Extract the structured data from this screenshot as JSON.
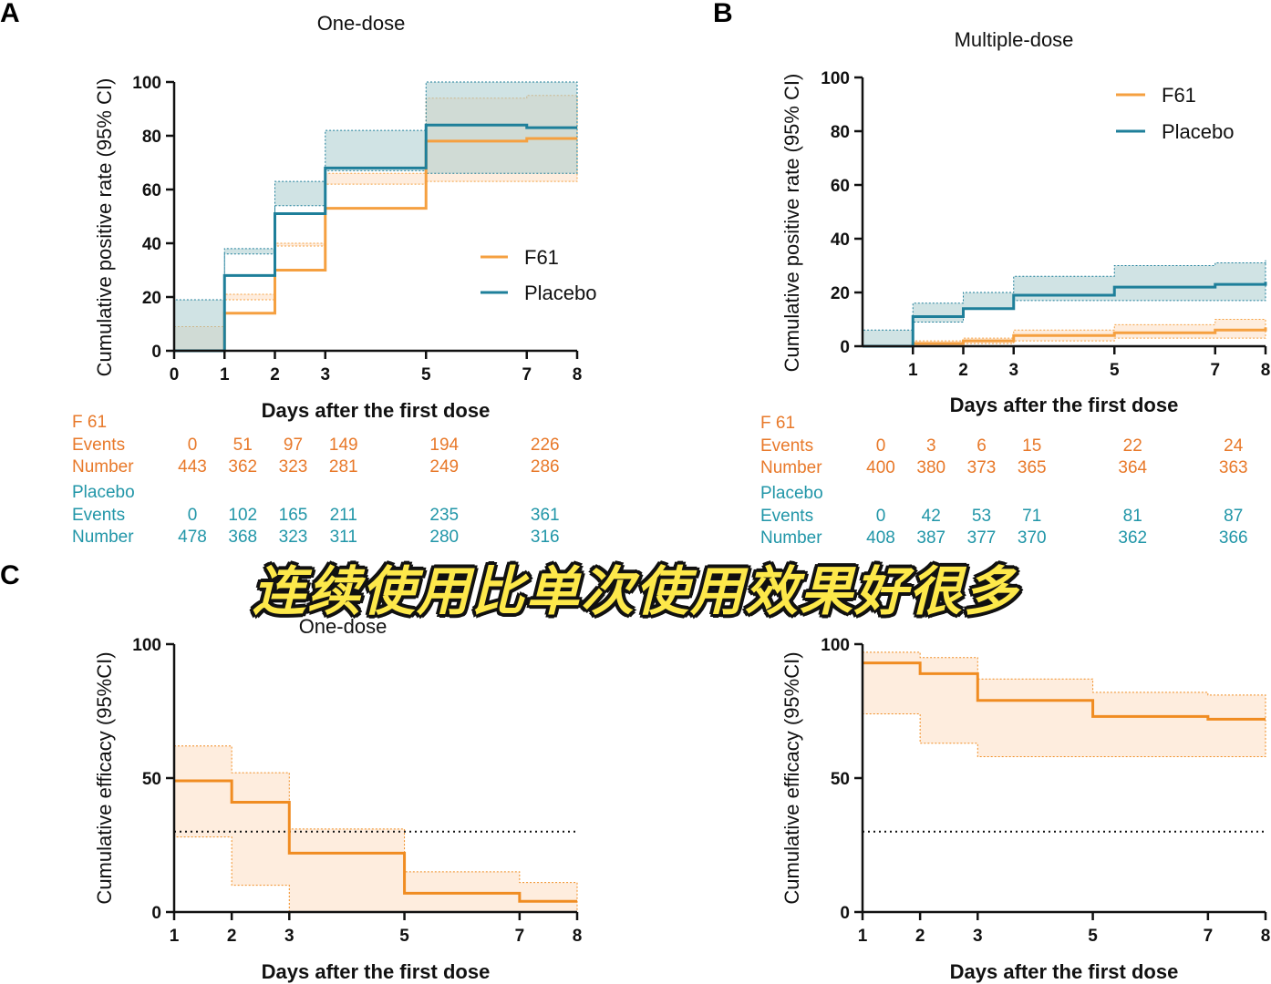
{
  "colors": {
    "f61": "#f5a040",
    "f61_fill": "#fde3cc",
    "f61_dark": "#f08c21",
    "placebo": "#1e7f9a",
    "placebo_fill": "#a9ccce",
    "risk_orange": "#e8792a",
    "risk_teal": "#2196a8",
    "axis": "#111111"
  },
  "caption": "连续使用比单次使用效果好很多",
  "chart_data": [
    {
      "id": "A",
      "panel_letter": "A",
      "type": "line",
      "step": true,
      "title": "One-dose",
      "xlabel": "Days after the first dose",
      "ylabel": "Cumulative positive rate (95% CI)",
      "xlim": [
        0,
        8
      ],
      "ylim": [
        0,
        100
      ],
      "xticks": [
        0,
        1,
        2,
        3,
        5,
        7,
        8
      ],
      "yticks": [
        0,
        20,
        40,
        60,
        80,
        100
      ],
      "legend_position": "middle-right",
      "series": [
        {
          "name": "F61",
          "color_key": "f61",
          "x": [
            0,
            1,
            2,
            3,
            5,
            7,
            8
          ],
          "y": [
            0,
            14,
            30,
            53,
            78,
            79,
            79
          ],
          "lower": [
            0,
            9,
            21,
            40,
            62,
            63,
            63
          ],
          "upper": [
            0,
            19,
            39,
            66,
            94,
            95,
            95
          ]
        },
        {
          "name": "Placebo",
          "color_key": "placebo",
          "x": [
            0,
            1,
            2,
            3,
            5,
            7,
            8
          ],
          "y": [
            0,
            28,
            51,
            68,
            84,
            83,
            83
          ],
          "lower": [
            0,
            19,
            38,
            54,
            67,
            66,
            66
          ],
          "upper": [
            0,
            36,
            63,
            82,
            100,
            100,
            100
          ]
        }
      ],
      "risk_table": {
        "columns": [
          0,
          1,
          2,
          3,
          5,
          7
        ],
        "groups": [
          {
            "name": "F 61",
            "color_key": "risk_orange",
            "rows": [
              {
                "label": "Events",
                "values": [
                  "0",
                  "51",
                  "97",
                  "149",
                  "194",
                  "226"
                ]
              },
              {
                "label": "Number",
                "values": [
                  "443",
                  "362",
                  "323",
                  "281",
                  "249",
                  "286"
                ]
              }
            ]
          },
          {
            "name": "Placebo",
            "color_key": "risk_teal",
            "rows": [
              {
                "label": "Events",
                "values": [
                  "0",
                  "102",
                  "165",
                  "211",
                  "235",
                  "361"
                ]
              },
              {
                "label": "Number",
                "values": [
                  "478",
                  "368",
                  "323",
                  "311",
                  "280",
                  "316"
                ]
              }
            ]
          }
        ]
      }
    },
    {
      "id": "B",
      "panel_letter": "B",
      "type": "line",
      "step": true,
      "title": "Multiple-dose",
      "xlabel": "Days after the first dose",
      "ylabel": "Cumulative positive rate (95% CI)",
      "xlim": [
        0,
        8
      ],
      "ylim": [
        0,
        100
      ],
      "xticks": [
        1,
        2,
        3,
        5,
        7,
        8
      ],
      "yticks": [
        0,
        20,
        40,
        60,
        80,
        100
      ],
      "legend_position": "top-right",
      "series": [
        {
          "name": "F61",
          "color_key": "f61",
          "x": [
            0,
            1,
            2,
            3,
            5,
            7,
            8
          ],
          "y": [
            0,
            1,
            2,
            4,
            5,
            6,
            7
          ],
          "lower": [
            0,
            0,
            0,
            1,
            2,
            3,
            3
          ],
          "upper": [
            0,
            2,
            3,
            6,
            8,
            10,
            10
          ]
        },
        {
          "name": "Placebo",
          "color_key": "placebo",
          "x": [
            0,
            1,
            2,
            3,
            5,
            7,
            8
          ],
          "y": [
            0,
            11,
            14,
            19,
            22,
            23,
            24
          ],
          "lower": [
            0,
            6,
            9,
            14,
            17,
            17,
            17
          ],
          "upper": [
            0,
            16,
            20,
            26,
            30,
            31,
            32
          ]
        }
      ],
      "risk_table": {
        "columns": [
          0,
          1,
          2,
          3,
          5,
          7
        ],
        "groups": [
          {
            "name": "F 61",
            "color_key": "risk_orange",
            "rows": [
              {
                "label": "Events",
                "values": [
                  "0",
                  "3",
                  "6",
                  "15",
                  "22",
                  "24"
                ]
              },
              {
                "label": "Number",
                "values": [
                  "400",
                  "380",
                  "373",
                  "365",
                  "364",
                  "363"
                ]
              }
            ]
          },
          {
            "name": "Placebo",
            "color_key": "risk_teal",
            "rows": [
              {
                "label": "Events",
                "values": [
                  "0",
                  "42",
                  "53",
                  "71",
                  "81",
                  "87"
                ]
              },
              {
                "label": "Number",
                "values": [
                  "408",
                  "387",
                  "377",
                  "370",
                  "362",
                  "366"
                ]
              }
            ]
          }
        ]
      }
    },
    {
      "id": "C1",
      "panel_letter": "C",
      "type": "line",
      "step": true,
      "title": "One-dose",
      "xlabel": "Days after the first dose",
      "ylabel": "Cumulative efficacy (95%CI)",
      "xlim": [
        1,
        8
      ],
      "ylim": [
        0,
        100
      ],
      "xticks": [
        1,
        2,
        3,
        5,
        7,
        8
      ],
      "yticks": [
        0,
        50,
        100
      ],
      "reference_line": 30,
      "series": [
        {
          "name": "F61",
          "color_key": "f61_dark",
          "x": [
            1,
            2,
            3,
            5,
            7,
            8
          ],
          "y": [
            49,
            41,
            22,
            7,
            4,
            4
          ],
          "lower": [
            31,
            28,
            10,
            0,
            0,
            0
          ],
          "upper": [
            62,
            52,
            31,
            15,
            11,
            11
          ]
        }
      ]
    },
    {
      "id": "C2",
      "panel_letter": "",
      "type": "line",
      "step": true,
      "title": "",
      "xlabel": "Days after the first dose",
      "ylabel": "Cumulative efficacy (95%CI)",
      "xlim": [
        1,
        8
      ],
      "ylim": [
        0,
        100
      ],
      "xticks": [
        1,
        2,
        3,
        5,
        7,
        8
      ],
      "yticks": [
        0,
        50,
        100
      ],
      "reference_line": 30,
      "series": [
        {
          "name": "F61",
          "color_key": "f61_dark",
          "x": [
            1,
            2,
            3,
            5,
            7,
            8
          ],
          "y": [
            93,
            89,
            79,
            73,
            72,
            72
          ],
          "lower": [
            76,
            74,
            63,
            58,
            58,
            58
          ],
          "upper": [
            97,
            95,
            87,
            82,
            81,
            81
          ]
        }
      ]
    }
  ]
}
